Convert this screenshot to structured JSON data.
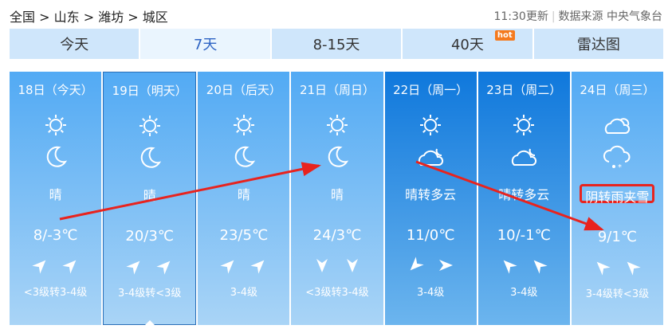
{
  "breadcrumb": [
    "全国",
    "山东",
    "潍坊",
    "城区"
  ],
  "update_time": "11:30更新",
  "source": "数据来源 中央气象台",
  "tabs": [
    {
      "label": "今天"
    },
    {
      "label": "7天",
      "active": true
    },
    {
      "label": "8-15天"
    },
    {
      "label": "40天",
      "badge": "hot"
    },
    {
      "label": "雷达图"
    }
  ],
  "days": [
    {
      "date": "18日（今天）",
      "icon_day": "sun",
      "icon_night": "moon",
      "desc": "晴",
      "temp": "8/-3℃",
      "wind": [
        "ne",
        "ne"
      ],
      "level": "<3级转3-4级"
    },
    {
      "date": "19日（明天）",
      "icon_day": "sun",
      "icon_night": "moon",
      "desc": "晴",
      "temp": "20/3℃",
      "wind": [
        "ne",
        "ne"
      ],
      "level": "3-4级转<3级",
      "selected": true
    },
    {
      "date": "20日（后天）",
      "icon_day": "sun",
      "icon_night": "moon",
      "desc": "晴",
      "temp": "23/5℃",
      "wind": [
        "ne",
        "ne"
      ],
      "level": "3-4级"
    },
    {
      "date": "21日（周日）",
      "icon_day": "sun",
      "icon_night": "moon",
      "desc": "晴",
      "temp": "24/3℃",
      "wind": [
        "s",
        "s"
      ],
      "level": "<3级转3-4级"
    },
    {
      "date": "22日（周一）",
      "icon_day": "sun",
      "icon_night": "cloud-moon",
      "desc": "晴转多云",
      "temp": "11/0℃",
      "wind": [
        "sw",
        "e"
      ],
      "level": "3-4级",
      "dark": true
    },
    {
      "date": "23日（周二）",
      "icon_day": "sun",
      "icon_night": "cloud-moon",
      "desc": "晴转多云",
      "temp": "10/-1℃",
      "wind": [
        "nw",
        "nw"
      ],
      "level": "3-4级",
      "dark": true
    },
    {
      "date": "24日（周三）",
      "icon_day": "overcast",
      "icon_night": "sleet",
      "desc": "阴转雨夹雪",
      "temp": "9/1℃",
      "wind": [
        "nw",
        "nw"
      ],
      "level": "3-4级转<3级",
      "highlight": true
    }
  ],
  "colors": {
    "tab_bg": "#cfe6fb",
    "tab_active_text": "#2e64c4",
    "annotation": "#e8231e",
    "hot": "#f57a1e"
  }
}
